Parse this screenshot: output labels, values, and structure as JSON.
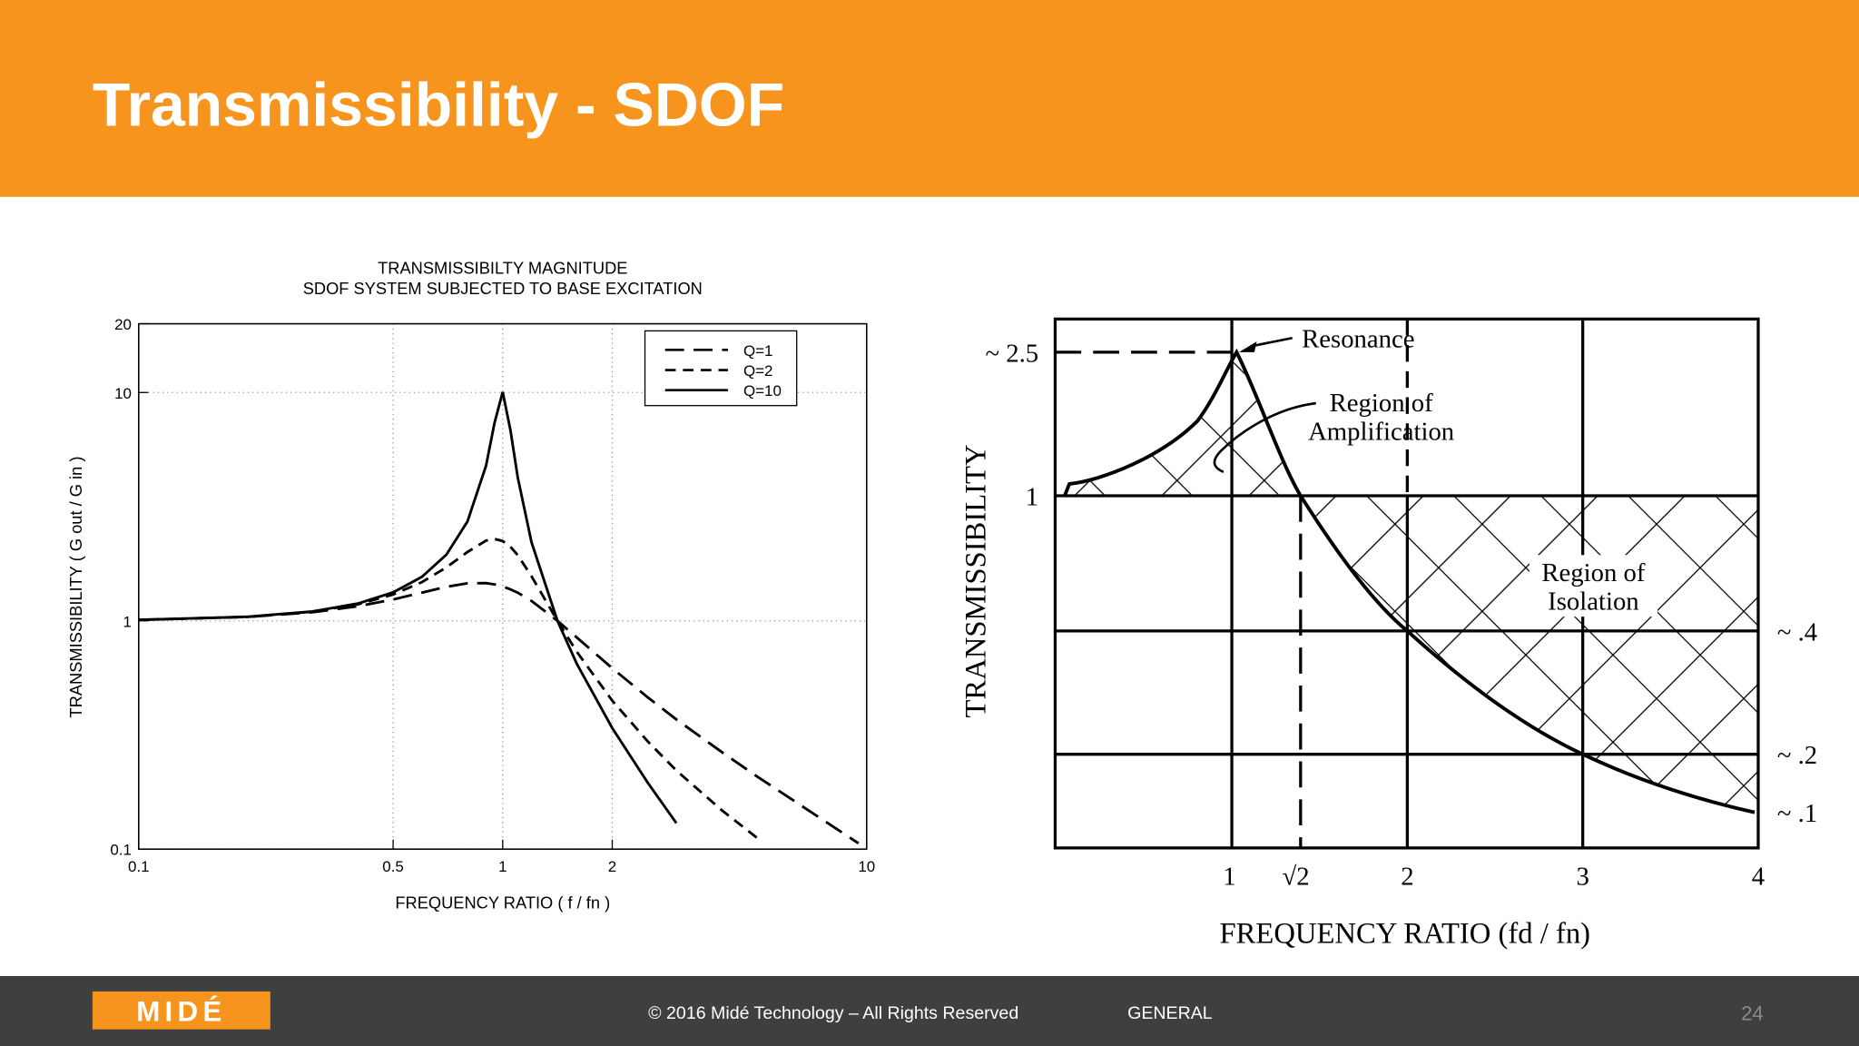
{
  "slide": {
    "title": "Transmissibility - SDOF"
  },
  "chart_data": [
    {
      "type": "line",
      "title": "TRANSMISSIBILTY MAGNITUDE",
      "subtitle": "SDOF SYSTEM SUBJECTED TO BASE EXCITATION",
      "x_label": "FREQUENCY RATIO ( f / fn )",
      "y_label": "TRANSMISSIBILITY ( G out / G in )",
      "x": [
        0.1,
        0.2,
        0.3,
        0.4,
        0.5,
        0.6,
        0.7,
        0.8,
        0.9,
        0.95,
        1,
        1.05,
        1.1,
        1.2,
        1.414,
        1.6,
        2,
        2.5,
        3,
        4,
        5,
        7,
        9.5
      ],
      "series": [
        {
          "name": "Q=1",
          "color": "#000000",
          "dash": "long",
          "values": [
            1.01,
            1.04,
            1.09,
            1.158,
            1.24,
            1.329,
            1.409,
            1.46,
            1.463,
            1.444,
            1.414,
            1.374,
            1.328,
            1.222,
            1,
            0.844,
            0.62,
            0.463,
            0.37,
            0.266,
            0.208,
            0.146,
            0.106
          ]
        },
        {
          "name": "Q=2",
          "color": "#000000",
          "dash": "short",
          "values": [
            1.01,
            1.041,
            1.096,
            1.181,
            1.304,
            1.477,
            1.713,
            2.001,
            2.245,
            2.283,
            2.236,
            2.112,
            1.939,
            1.567,
            1,
            0.73,
            0.447,
            0.297,
            0.221,
            0.148,
            0.112,
            null,
            null
          ]
        },
        {
          "name": "Q=10",
          "color": "#000000",
          "dash": "solid",
          "values": [
            1.01,
            1.042,
            1.099,
            1.19,
            1.332,
            1.558,
            1.947,
            2.72,
            4.776,
            7.38,
            10.05,
            6.853,
            4.244,
            2.208,
            1,
            0.646,
            0.339,
            0.196,
            0.13,
            null,
            null,
            null,
            null
          ]
        }
      ],
      "xlim": [
        0.1,
        10
      ],
      "ylim": [
        0.1,
        20
      ],
      "xticks": [
        0.1,
        0.5,
        1,
        2,
        10
      ],
      "yticks": [
        0.1,
        1,
        10,
        20
      ],
      "log_x": true,
      "log_y": true,
      "grid": true,
      "legend": "upper right"
    },
    {
      "type": "diagram",
      "y_label": "TRANSMISSIBILITY",
      "x_label": "FREQUENCY RATIO (fd / fn)",
      "xtick_labels": [
        "1",
        "√2",
        "2",
        "3",
        "4"
      ],
      "ytick_labels": [
        "~ 2.5",
        "1",
        "~ .4",
        "~ .2",
        "~ .1"
      ],
      "annotations": [
        "Resonance",
        "Region of",
        "Amplification",
        "Region of",
        "Isolation"
      ]
    }
  ],
  "footer": {
    "logo": "MIDÉ",
    "copyright": "© 2016 Midé Technology – All Rights Reserved",
    "classification": "GENERAL",
    "page": "24"
  }
}
